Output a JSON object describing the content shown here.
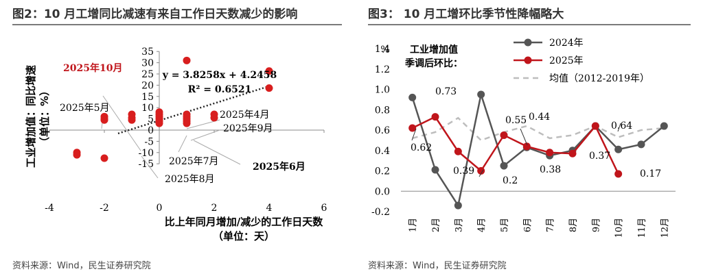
{
  "figure2": {
    "title": "图2：10 月工增同比减速有来自工作日天数减少的影响",
    "source": "资料来源：Wind，民生证券研究院"
  },
  "figure3": {
    "title": "图3：  10 月工增环比季节性降幅略大",
    "source": "资料来源：Wind，民生证券研究院"
  },
  "chart_data": [
    {
      "type": "scatter",
      "ylabel": "工业增加值：同比增速（单位：%）",
      "xlabel_line1": "比上年同月增加/减少的工作日天数",
      "xlabel_line2": "（单位：天）",
      "xlim": [
        -4,
        6
      ],
      "ylim": [
        -15,
        35
      ],
      "x_ticks": [
        -4,
        -2,
        0,
        2,
        4,
        6
      ],
      "y_ticks": [
        -15,
        -10,
        -5,
        0,
        5,
        10,
        15,
        20,
        25,
        30,
        35
      ],
      "points": [
        {
          "x": -3,
          "y": -10
        },
        {
          "x": -3,
          "y": -11
        },
        {
          "x": -2,
          "y": -12.5
        },
        {
          "x": -2,
          "y": 6
        },
        {
          "x": -2,
          "y": 5
        },
        {
          "x": -2,
          "y": 4.5
        },
        {
          "x": -1,
          "y": 7
        },
        {
          "x": -1,
          "y": 5.5
        },
        {
          "x": -1,
          "y": 4.5
        },
        {
          "x": 0,
          "y": 8
        },
        {
          "x": 0,
          "y": 7
        },
        {
          "x": 0,
          "y": 6
        },
        {
          "x": 0,
          "y": 5
        },
        {
          "x": 0,
          "y": 4
        },
        {
          "x": 0,
          "y": 3
        },
        {
          "x": 1,
          "y": 31
        },
        {
          "x": 1,
          "y": 7
        },
        {
          "x": 1,
          "y": 6
        },
        {
          "x": 1,
          "y": 5
        },
        {
          "x": 1,
          "y": 4
        },
        {
          "x": 1,
          "y": 3
        },
        {
          "x": 2,
          "y": 7
        },
        {
          "x": 2,
          "y": 5.5
        },
        {
          "x": 4,
          "y": 26.3
        },
        {
          "x": 4,
          "y": 18.7
        }
      ],
      "trendline": {
        "slope": 3.8258,
        "intercept": 4.2458,
        "x_range": [
          -1.5,
          4
        ]
      },
      "equation": "y = 3.8258x + 4.2458",
      "r2": "R² = 0.6521",
      "annotations": [
        {
          "text": "2025年10月",
          "bold": true,
          "color": "#c0151b"
        },
        {
          "text": "2025年5月"
        },
        {
          "text": "2025年4月"
        },
        {
          "text": "2025年9月"
        },
        {
          "text": "2025年7月"
        },
        {
          "text": "2025年6月",
          "bold": true
        },
        {
          "text": "2025年8月"
        }
      ]
    },
    {
      "type": "line",
      "unit": "%",
      "inner_title_line1": "工业增加值",
      "inner_title_line2": "季调后环比：",
      "categories": [
        "1月",
        "2月",
        "3月",
        "4月",
        "5月",
        "6月",
        "7月",
        "8月",
        "9月",
        "10月",
        "11月",
        "12月"
      ],
      "ylim": [
        -0.2,
        1.4
      ],
      "y_ticks": [
        "-0.2",
        "0.0",
        "0.2",
        "0.4",
        "0.6",
        "0.8",
        "1.0",
        "1.2",
        "1.4"
      ],
      "series": [
        {
          "name": "2024年",
          "color": "#555555",
          "style": "solid-marker",
          "values": [
            0.92,
            0.21,
            -0.14,
            0.95,
            0.25,
            0.43,
            0.35,
            0.4,
            0.64,
            0.41,
            0.46,
            0.64
          ]
        },
        {
          "name": "2025年",
          "color": "#c0151b",
          "style": "solid-marker",
          "values": [
            0.62,
            0.73,
            0.39,
            0.2,
            0.55,
            0.44,
            0.38,
            0.37,
            0.64,
            0.17,
            null,
            null
          ]
        },
        {
          "name": "均值（2012-2019年）",
          "color": "#bdbdbd",
          "style": "dashed",
          "values": [
            0.52,
            0.58,
            0.72,
            0.5,
            0.58,
            0.64,
            0.52,
            0.55,
            0.64,
            0.53,
            0.6,
            0.62
          ]
        }
      ],
      "data_labels": [
        "0.62",
        "0.73",
        "0.39",
        "0.2",
        "0.55",
        "0.44",
        "0.38",
        "0.37",
        "0.64",
        "0.17"
      ]
    }
  ]
}
